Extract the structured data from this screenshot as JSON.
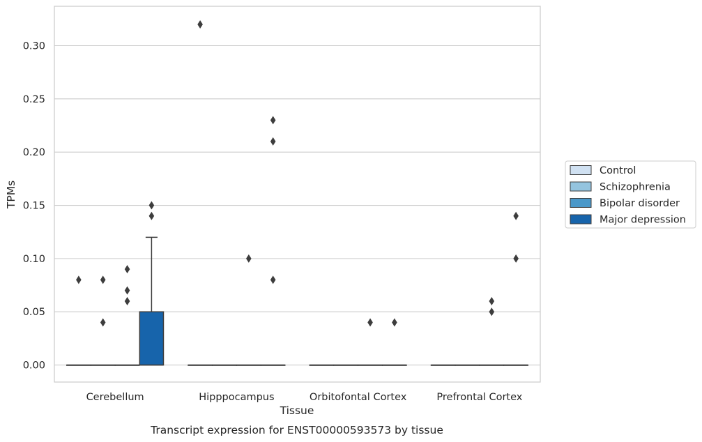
{
  "chart_data": {
    "type": "box",
    "xlabel": "Tissue",
    "ylabel": "TPMs",
    "caption": "Transcript expression for ENST00000593573 by tissue",
    "ylim": [
      -0.016,
      0.337
    ],
    "yticks": [
      0.0,
      0.05,
      0.1,
      0.15,
      0.2,
      0.25,
      0.3
    ],
    "ytick_labels": [
      "0.00",
      "0.05",
      "0.10",
      "0.15",
      "0.20",
      "0.25",
      "0.30"
    ],
    "grid": "horizontal",
    "legend_position": "right",
    "categories": [
      "Cerebellum",
      "Hipppocampus",
      "Orbitofontal Cortex",
      "Prefrontal Cortex"
    ],
    "series": [
      {
        "name": "Control",
        "color": "#d0e1f2",
        "boxes": [
          {
            "q1": 0,
            "median": 0,
            "q3": 0,
            "whisker_low": 0,
            "whisker_high": 0,
            "outliers": [
              0.08
            ]
          },
          {
            "q1": 0,
            "median": 0,
            "q3": 0,
            "whisker_low": 0,
            "whisker_high": 0,
            "outliers": [
              0.32
            ]
          },
          {
            "q1": 0,
            "median": 0,
            "q3": 0,
            "whisker_low": 0,
            "whisker_high": 0,
            "outliers": []
          },
          {
            "q1": 0,
            "median": 0,
            "q3": 0,
            "whisker_low": 0,
            "whisker_high": 0,
            "outliers": []
          }
        ]
      },
      {
        "name": "Schizophrenia",
        "color": "#94c4df",
        "boxes": [
          {
            "q1": 0,
            "median": 0,
            "q3": 0,
            "whisker_low": 0,
            "whisker_high": 0,
            "outliers": [
              0.08,
              0.04
            ]
          },
          {
            "q1": 0,
            "median": 0,
            "q3": 0,
            "whisker_low": 0,
            "whisker_high": 0,
            "outliers": []
          },
          {
            "q1": 0,
            "median": 0,
            "q3": 0,
            "whisker_low": 0,
            "whisker_high": 0,
            "outliers": []
          },
          {
            "q1": 0,
            "median": 0,
            "q3": 0,
            "whisker_low": 0,
            "whisker_high": 0,
            "outliers": []
          }
        ]
      },
      {
        "name": "Bipolar disorder",
        "color": "#4a98c9",
        "boxes": [
          {
            "q1": 0,
            "median": 0,
            "q3": 0,
            "whisker_low": 0,
            "whisker_high": 0,
            "outliers": [
              0.09,
              0.07,
              0.06
            ]
          },
          {
            "q1": 0,
            "median": 0,
            "q3": 0,
            "whisker_low": 0,
            "whisker_high": 0,
            "outliers": [
              0.1
            ]
          },
          {
            "q1": 0,
            "median": 0,
            "q3": 0,
            "whisker_low": 0,
            "whisker_high": 0,
            "outliers": [
              0.04
            ]
          },
          {
            "q1": 0,
            "median": 0,
            "q3": 0,
            "whisker_low": 0,
            "whisker_high": 0,
            "outliers": [
              0.06,
              0.05
            ]
          }
        ]
      },
      {
        "name": "Major depression",
        "color": "#1764ab",
        "boxes": [
          {
            "q1": 0,
            "median": 0,
            "q3": 0.05,
            "whisker_low": 0,
            "whisker_high": 0.12,
            "outliers": [
              0.15,
              0.14
            ]
          },
          {
            "q1": 0,
            "median": 0,
            "q3": 0,
            "whisker_low": 0,
            "whisker_high": 0,
            "outliers": [
              0.23,
              0.21,
              0.08
            ]
          },
          {
            "q1": 0,
            "median": 0,
            "q3": 0,
            "whisker_low": 0,
            "whisker_high": 0,
            "outliers": [
              0.04
            ]
          },
          {
            "q1": 0,
            "median": 0,
            "q3": 0,
            "whisker_low": 0,
            "whisker_high": 0,
            "outliers": [
              0.14,
              0.1
            ]
          }
        ]
      }
    ]
  }
}
